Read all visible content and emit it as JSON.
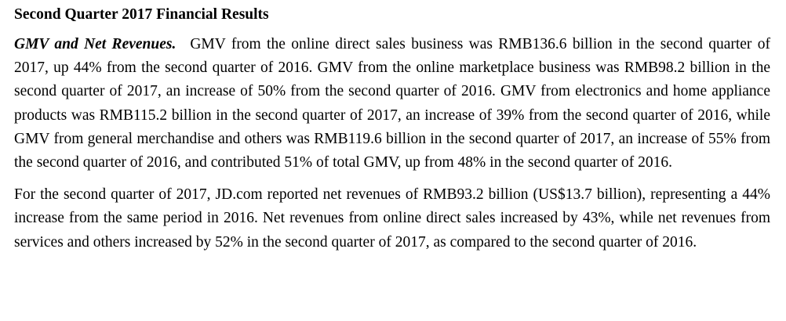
{
  "section": {
    "title": "Second Quarter 2017 Financial Results"
  },
  "paragraphs": [
    {
      "runin": "GMV and Net Revenues.",
      "text": "GMV from the online direct sales business was RMB136.6 billion in the second quarter of 2017, up 44% from the second quarter of 2016. GMV from the online marketplace business was RMB98.2 billion in the second quarter of 2017, an increase of 50% from the second quarter of 2016. GMV from electronics and home appliance products was RMB115.2 billion in the second quarter of 2017, an increase of 39% from the second quarter of 2016, while GMV from general merchandise and others was RMB119.6 billion in the second quarter of 2017, an increase of 55% from the second quarter of 2016, and contributed 51% of total GMV, up from 48% in the second quarter of 2016."
    },
    {
      "text": "For the second quarter of 2017, JD.com reported net revenues of RMB93.2 billion (US$13.7 billion), representing a 44% increase from the same period in 2016. Net revenues from online direct sales increased by 43%, while net revenues from services and others increased by 52% in the second quarter of 2017, as compared to the second quarter of 2016."
    }
  ]
}
